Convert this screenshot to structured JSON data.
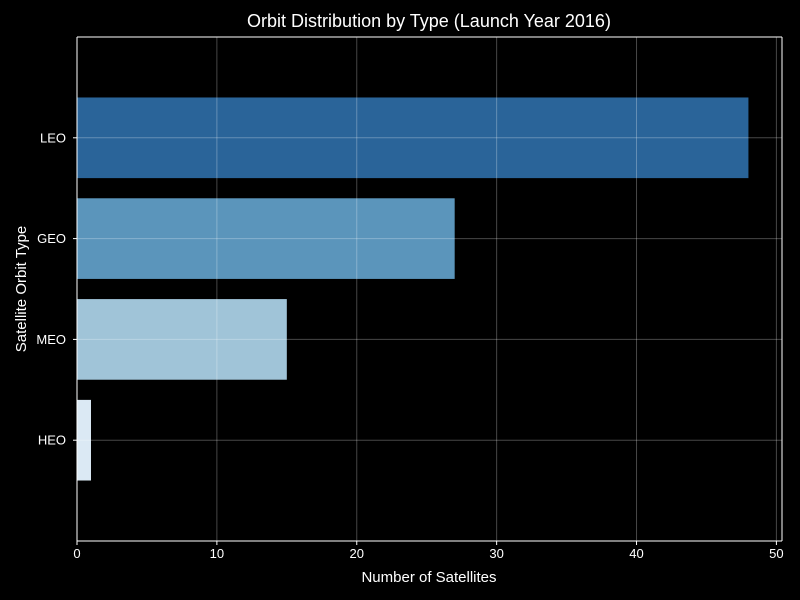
{
  "chart_data": {
    "type": "bar",
    "orientation": "horizontal",
    "title": "Orbit Distribution by Type (Launch Year 2016)",
    "xlabel": "Number of Satellites",
    "ylabel": "Satellite Orbit Type",
    "categories": [
      "LEO",
      "GEO",
      "MEO",
      "HEO"
    ],
    "values": [
      48,
      27,
      15,
      1
    ],
    "colors": [
      "#2a6499",
      "#5b95bb",
      "#a0c4d8",
      "#dbe9f4"
    ],
    "xlim": [
      0,
      50.4
    ],
    "xticks": [
      0,
      10,
      20,
      30,
      40,
      50
    ],
    "grid": true,
    "background": "#000000",
    "text_color": "#ffffff"
  }
}
